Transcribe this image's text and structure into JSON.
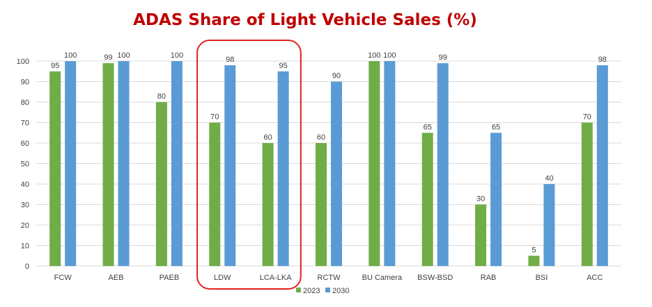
{
  "colors": {
    "title": "#c00000",
    "series_2023": "#70ad47",
    "series_2030": "#5b9bd5",
    "grid": "#d9d9d9",
    "highlight_box": "#e02020"
  },
  "chart_data": {
    "type": "bar",
    "title": "ADAS Share of Light Vehicle Sales (%)",
    "xlabel": "",
    "ylabel": "",
    "ylim": [
      0,
      100
    ],
    "yticks": [
      0,
      10,
      20,
      30,
      40,
      50,
      60,
      70,
      80,
      90,
      100
    ],
    "grid": true,
    "legend_position": "bottom",
    "categories": [
      "FCW",
      "AEB",
      "PAEB",
      "LDW",
      "LCA-LKA",
      "RCTW",
      "BU Camera",
      "BSW-BSD",
      "RAB",
      "BSI",
      "ACC"
    ],
    "series": [
      {
        "name": "2023",
        "color": "#70ad47",
        "values": [
          95,
          99,
          80,
          70,
          60,
          60,
          100,
          65,
          30,
          5,
          70
        ]
      },
      {
        "name": "2030",
        "color": "#5b9bd5",
        "values": [
          100,
          100,
          100,
          98,
          95,
          90,
          100,
          99,
          65,
          40,
          98
        ]
      }
    ],
    "highlighted_categories": [
      "LDW",
      "LCA-LKA"
    ]
  }
}
